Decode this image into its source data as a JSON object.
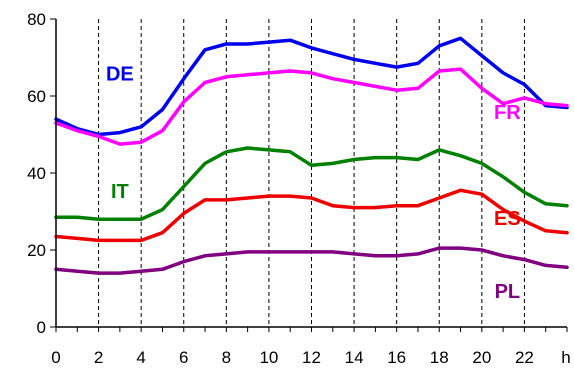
{
  "chart_data": {
    "type": "line",
    "title": "",
    "xlabel": "",
    "ylabel": "",
    "x_unit_label": "h",
    "x": [
      0,
      1,
      2,
      3,
      4,
      5,
      6,
      7,
      8,
      9,
      10,
      11,
      12,
      13,
      14,
      15,
      16,
      17,
      18,
      19,
      20,
      21,
      22,
      23,
      24
    ],
    "x_ticks": [
      0,
      2,
      4,
      6,
      8,
      10,
      12,
      14,
      16,
      18,
      20,
      22
    ],
    "y_ticks": [
      0,
      20,
      40,
      60,
      80
    ],
    "xlim": [
      0,
      24
    ],
    "ylim": [
      0,
      80
    ],
    "grid": {
      "vertical": true,
      "horizontal": false
    },
    "series": [
      {
        "name": "DE",
        "color": "#0000ee",
        "values": [
          54,
          51.5,
          50,
          50.5,
          52,
          56.5,
          64.5,
          72,
          73.5,
          73.5,
          74,
          74.5,
          72.5,
          71,
          69.5,
          68.5,
          67.5,
          68.5,
          73,
          75,
          70.5,
          66,
          63,
          57.5,
          57
        ]
      },
      {
        "name": "FR",
        "color": "#ff00ff",
        "values": [
          53,
          51,
          49.5,
          47.5,
          48,
          51,
          58.5,
          63.5,
          65,
          65.5,
          66,
          66.5,
          66,
          64.5,
          63.5,
          62.5,
          61.5,
          62,
          66.5,
          67,
          62,
          58,
          59.5,
          58,
          57.5
        ]
      },
      {
        "name": "IT",
        "color": "#008000",
        "values": [
          28.5,
          28.5,
          28,
          28,
          28,
          30.5,
          36.5,
          42.5,
          45.5,
          46.5,
          46,
          45.5,
          42,
          42.5,
          43.5,
          44,
          44,
          43.5,
          46,
          44.5,
          42.5,
          39,
          35,
          32,
          31.5
        ]
      },
      {
        "name": "ES",
        "color": "#ee0000",
        "values": [
          23.5,
          23,
          22.5,
          22.5,
          22.5,
          24.5,
          29.5,
          33,
          33,
          33.5,
          34,
          34,
          33.5,
          31.5,
          31,
          31,
          31.5,
          31.5,
          33.5,
          35.5,
          34.5,
          30.5,
          27.5,
          25,
          24.5
        ]
      },
      {
        "name": "PL",
        "color": "#800080",
        "values": [
          15,
          14.5,
          14,
          14,
          14.5,
          15,
          17,
          18.5,
          19,
          19.5,
          19.5,
          19.5,
          19.5,
          19.5,
          19,
          18.5,
          18.5,
          19,
          20.5,
          20.5,
          20,
          18.5,
          17.5,
          16,
          15.5
        ]
      }
    ]
  }
}
